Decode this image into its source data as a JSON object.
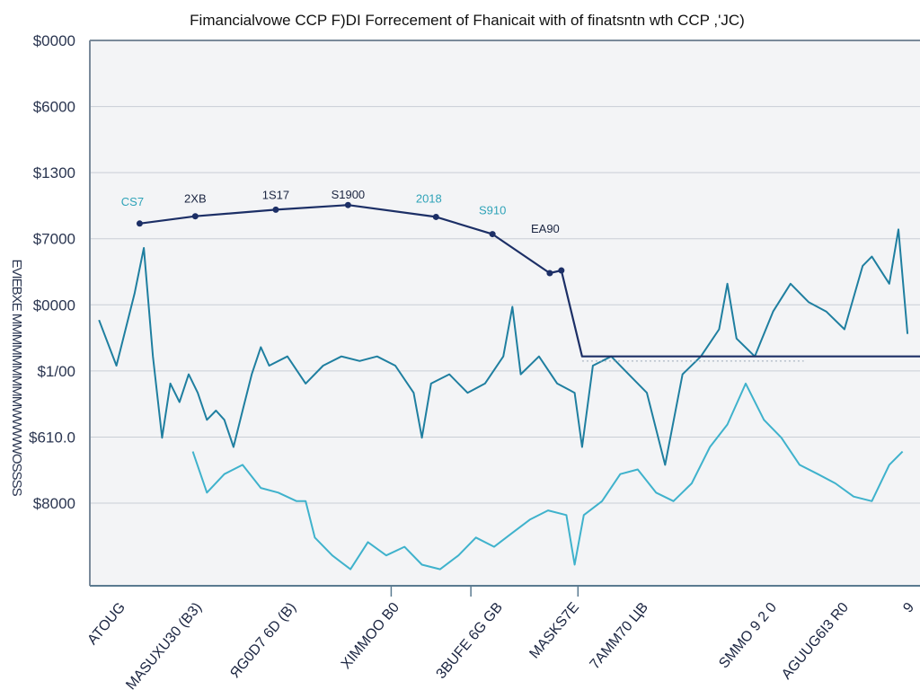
{
  "chart_data": {
    "type": "line",
    "title": "Fimancialvowe CCP F)DI Forrecement of Fhanicait  with of finatsntn wth CCP ,'JC)",
    "ylabel": "EVIEBXE MMMMMMMMMWWWWOSSSS",
    "xlabel": "",
    "xlim": [
      0,
      100
    ],
    "ylim": [
      -0.25,
      8
    ],
    "grid": true,
    "y_ticks": [
      {
        "value": 8,
        "label": "$0000"
      },
      {
        "value": 7,
        "label": "$6000"
      },
      {
        "value": 6,
        "label": "$1300"
      },
      {
        "value": 5,
        "label": "$7000"
      },
      {
        "value": 4,
        "label": "$0000"
      },
      {
        "value": 3,
        "label": "$1/00"
      },
      {
        "value": 2,
        "label": "$610.0"
      },
      {
        "value": 1,
        "label": "$8000"
      }
    ],
    "x_tick_marks": [
      36.3,
      45.9,
      58.8
    ],
    "x_labels": [
      "ATOUG",
      "MASUXU30 (B3)",
      "ЯG0D7 6D (B)",
      "XIMMOO B0",
      "3BUFE 6G GB",
      "MASKS7E",
      "7AMM70 ЦB",
      "SMMO 9 2 0",
      "AGUUG6I3 R0",
      "9"
    ],
    "series": [
      {
        "color": "#1c2f66",
        "markers": true,
        "x": [
          6.0,
          12.7,
          22.4,
          31.1,
          41.7,
          48.5,
          55.4,
          56.8,
          59.3,
          100
        ],
        "y": [
          5.23,
          5.34,
          5.44,
          5.51,
          5.33,
          5.07,
          4.48,
          4.52,
          3.22,
          3.22
        ],
        "point_labels": [
          {
            "text": "CS7",
            "color": "#2fa3b8"
          },
          {
            "text": "2XB",
            "color": "#1a2440"
          },
          {
            "text": "1S17",
            "color": "#1a2440"
          },
          {
            "text": "S1900",
            "color": "#1a2440"
          },
          {
            "text": "2018",
            "color": "#2fa3b8"
          },
          {
            "text": "S910",
            "color": "#2fa3b8"
          },
          {
            "text": "EA90",
            "color": "#1a2440"
          }
        ]
      },
      {
        "color": "#1f7fa0",
        "x": [
          1.1,
          3.2,
          5.4,
          6.5,
          7.6,
          8.7,
          9.7,
          10.8,
          11.9,
          13.0,
          14.1,
          15.2,
          16.2,
          17.3,
          18.4,
          19.5,
          20.6,
          21.6,
          23.8,
          26.0,
          28.1,
          30.3,
          32.5,
          34.6,
          36.8,
          39.0,
          40.0,
          41.1,
          43.3,
          45.5,
          47.6,
          49.8,
          50.9,
          51.9,
          54.1,
          56.3,
          58.4,
          59.3,
          60.6,
          62.8,
          64.9,
          67.1,
          69.3,
          71.4,
          73.6,
          75.8,
          76.8,
          77.9,
          80.1,
          82.3,
          84.4,
          86.6,
          88.7,
          90.9,
          93.1,
          94.2,
          96.3,
          97.4,
          98.5
        ],
        "y": [
          3.77,
          3.08,
          4.18,
          4.86,
          3.22,
          1.99,
          2.81,
          2.53,
          2.95,
          2.67,
          2.26,
          2.4,
          2.26,
          1.85,
          2.4,
          2.95,
          3.36,
          3.08,
          3.22,
          2.81,
          3.08,
          3.22,
          3.15,
          3.22,
          3.08,
          2.67,
          1.99,
          2.81,
          2.95,
          2.67,
          2.81,
          3.22,
          3.97,
          2.95,
          3.22,
          2.81,
          2.67,
          1.85,
          3.08,
          3.22,
          2.95,
          2.67,
          1.58,
          2.95,
          3.22,
          3.63,
          4.32,
          3.49,
          3.22,
          3.9,
          4.32,
          4.04,
          3.9,
          3.63,
          4.59,
          4.73,
          4.32,
          5.14,
          3.56
        ]
      },
      {
        "color": "#3fb2cc",
        "x": [
          12.4,
          14.1,
          16.2,
          18.4,
          20.6,
          22.7,
          24.9,
          26.0,
          27.1,
          29.2,
          31.4,
          33.5,
          35.7,
          37.9,
          40.0,
          42.2,
          44.4,
          46.5,
          48.7,
          50.9,
          53.0,
          55.2,
          57.4,
          58.4,
          59.5,
          61.7,
          63.9,
          66.0,
          68.2,
          70.3,
          72.5,
          74.7,
          76.8,
          79.0,
          81.2,
          83.3,
          85.5,
          87.7,
          89.8,
          92.0,
          94.2,
          96.3,
          97.9
        ],
        "y": [
          1.78,
          1.16,
          1.44,
          1.58,
          1.23,
          1.16,
          1.03,
          1.03,
          0.48,
          0.21,
          0.0,
          0.41,
          0.21,
          0.34,
          0.07,
          0.0,
          0.21,
          0.48,
          0.34,
          0.55,
          0.75,
          0.89,
          0.82,
          0.07,
          0.82,
          1.03,
          1.44,
          1.51,
          1.16,
          1.03,
          1.3,
          1.85,
          2.19,
          2.81,
          2.26,
          1.99,
          1.58,
          1.44,
          1.3,
          1.1,
          1.03,
          1.58,
          1.78
        ]
      }
    ]
  }
}
